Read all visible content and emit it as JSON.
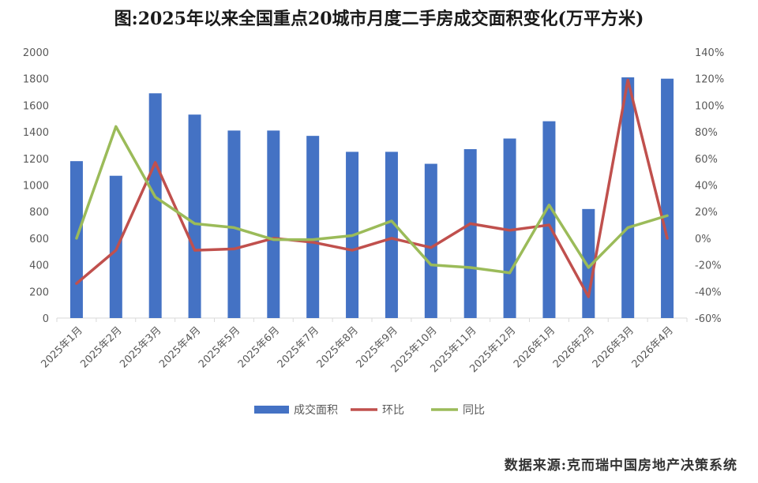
{
  "chart_data": {
    "type": "bar",
    "title": "图:2025年以来全国重点20城市月度二手房成交面积变化(万平方米)",
    "categories": [
      "2025年1月",
      "2025年2月",
      "2025年3月",
      "2025年4月",
      "2025年5月",
      "2025年6月",
      "2025年7月",
      "2025年8月",
      "2025年9月",
      "2025年10月",
      "2025年11月",
      "2025年12月",
      "2026年1月",
      "2026年2月",
      "2026年3月",
      "2026年4月"
    ],
    "y_left": {
      "min": 0,
      "max": 2000,
      "ticks": [
        "0",
        "200",
        "400",
        "600",
        "800",
        "1000",
        "1200",
        "1400",
        "1600",
        "1800",
        "2000"
      ]
    },
    "y_right": {
      "min": -60,
      "max": 140,
      "ticks": [
        "-60%",
        "-40%",
        "-20%",
        "0%",
        "20%",
        "40%",
        "60%",
        "80%",
        "100%",
        "120%",
        "140%"
      ]
    },
    "series": [
      {
        "name": "成交面积",
        "kind": "bar",
        "axis": "left",
        "color": "#4472c4",
        "values": [
          1180,
          1070,
          1690,
          1530,
          1410,
          1410,
          1370,
          1250,
          1250,
          1160,
          1270,
          1350,
          1480,
          820,
          1810,
          1800
        ]
      },
      {
        "name": "环比",
        "kind": "line",
        "axis": "right",
        "color": "#c0504d",
        "values": [
          -34,
          -9,
          57,
          -9,
          -8,
          0,
          -3,
          -9,
          0,
          -7,
          11,
          6,
          10,
          -44,
          119,
          0
        ]
      },
      {
        "name": "同比",
        "kind": "line",
        "axis": "right",
        "color": "#9bbb59",
        "values": [
          0,
          84,
          31,
          11,
          8,
          -1,
          -1,
          2,
          13,
          -20,
          -22,
          -26,
          25,
          -22,
          8,
          17
        ]
      }
    ],
    "grid": false,
    "legend": "bottom"
  },
  "source": "数据来源:克而瑞中国房地产决策系统"
}
